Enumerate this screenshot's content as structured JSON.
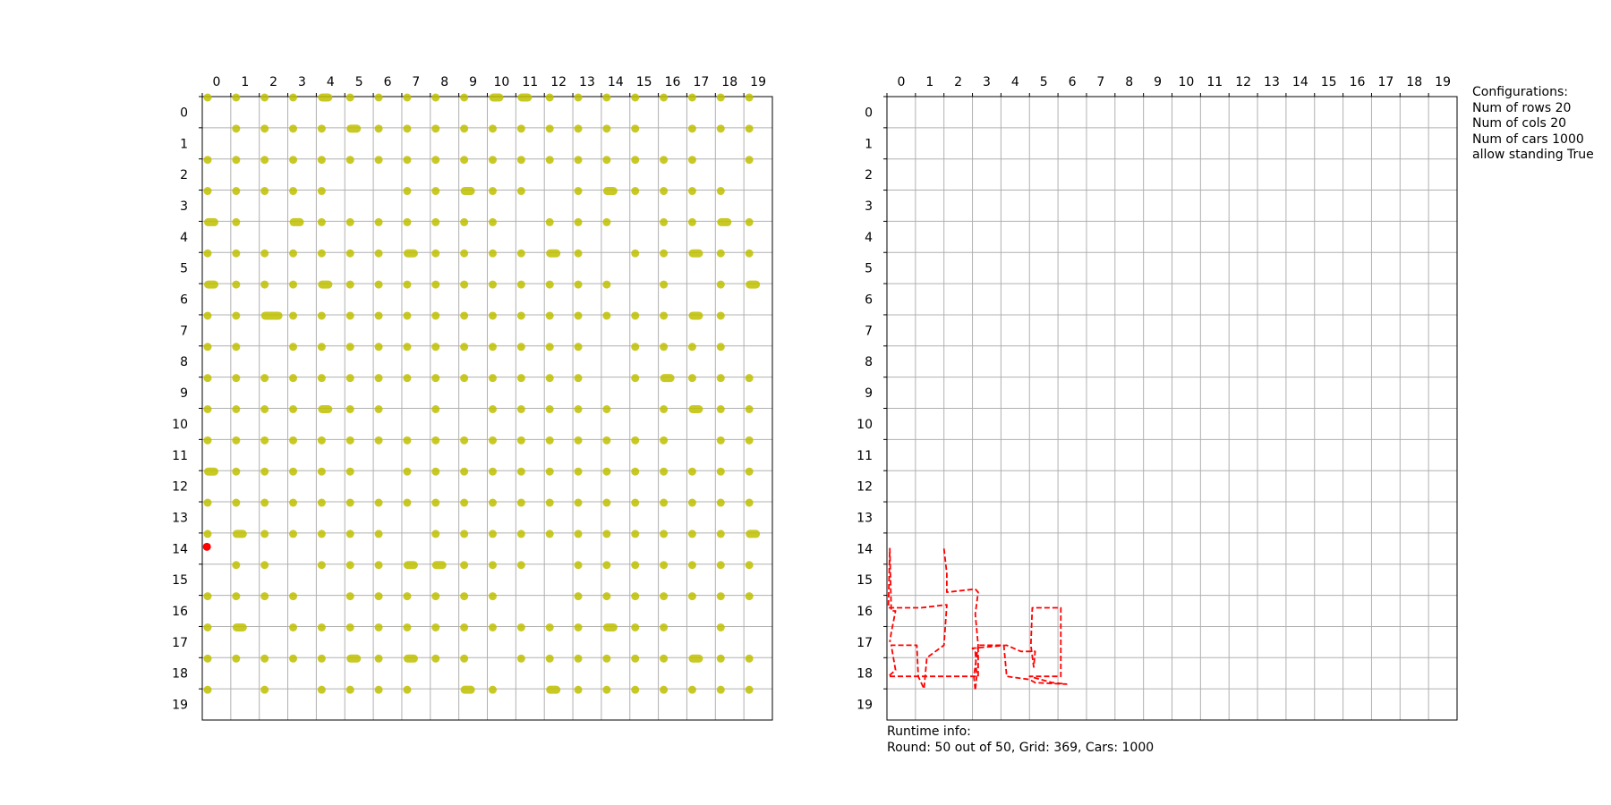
{
  "configurations": {
    "title": "Configurations:",
    "lines": [
      "Num of rows 20",
      "Num of cols 20",
      "Num of cars 1000",
      "allow standing True"
    ]
  },
  "runtime": {
    "title": "Runtime info:",
    "line": "Round: 50 out of 50, Grid: 369, Cars: 1000"
  },
  "colors": {
    "car": "#bfbf00",
    "highlight": "#ff0000",
    "path": "#ff0000",
    "grid": "#b0b0b0"
  },
  "chart_data": [
    {
      "type": "scatter",
      "title": "",
      "x_ticks": [
        0,
        1,
        2,
        3,
        4,
        5,
        6,
        7,
        8,
        9,
        10,
        11,
        12,
        13,
        14,
        15,
        16,
        17,
        18,
        19
      ],
      "y_ticks": [
        0,
        1,
        2,
        3,
        4,
        5,
        6,
        7,
        8,
        9,
        10,
        11,
        12,
        13,
        14,
        15,
        16,
        17,
        18,
        19
      ],
      "xlim": [
        0,
        20
      ],
      "ylim": [
        20,
        0
      ],
      "grid": true,
      "car_row_occupancy": [
        [
          1,
          1,
          1,
          1,
          2,
          1,
          1,
          1,
          1,
          1,
          2,
          2,
          1,
          1,
          1,
          1,
          1,
          1,
          1,
          1
        ],
        [
          0,
          1,
          1,
          1,
          1,
          2,
          1,
          1,
          1,
          1,
          1,
          1,
          1,
          1,
          1,
          1,
          0,
          1,
          1,
          1
        ],
        [
          1,
          1,
          1,
          1,
          1,
          1,
          1,
          1,
          1,
          1,
          1,
          1,
          1,
          1,
          1,
          1,
          1,
          1,
          0,
          1
        ],
        [
          1,
          1,
          1,
          1,
          1,
          0,
          0,
          1,
          1,
          2,
          1,
          1,
          0,
          1,
          2,
          1,
          1,
          1,
          1,
          0
        ],
        [
          2,
          1,
          0,
          2,
          1,
          1,
          1,
          1,
          1,
          1,
          1,
          0,
          1,
          1,
          1,
          0,
          1,
          1,
          2,
          1
        ],
        [
          1,
          1,
          1,
          1,
          1,
          1,
          1,
          2,
          1,
          1,
          1,
          1,
          2,
          1,
          0,
          1,
          1,
          2,
          1,
          1
        ],
        [
          2,
          1,
          1,
          1,
          2,
          1,
          1,
          1,
          1,
          1,
          1,
          1,
          1,
          1,
          1,
          0,
          1,
          0,
          1,
          2
        ],
        [
          1,
          1,
          3,
          1,
          1,
          1,
          1,
          1,
          1,
          1,
          1,
          1,
          1,
          1,
          1,
          1,
          1,
          2,
          1,
          0
        ],
        [
          1,
          1,
          0,
          1,
          1,
          1,
          1,
          1,
          1,
          1,
          1,
          1,
          1,
          1,
          0,
          1,
          1,
          1,
          1,
          0
        ],
        [
          1,
          1,
          1,
          1,
          1,
          1,
          1,
          1,
          1,
          1,
          1,
          1,
          1,
          1,
          0,
          1,
          2,
          1,
          1,
          1
        ],
        [
          1,
          1,
          1,
          1,
          2,
          1,
          1,
          0,
          1,
          0,
          1,
          1,
          1,
          1,
          1,
          0,
          1,
          2,
          1,
          1
        ],
        [
          1,
          1,
          1,
          1,
          1,
          1,
          1,
          1,
          1,
          1,
          1,
          1,
          1,
          1,
          1,
          1,
          1,
          0,
          1,
          1
        ],
        [
          2,
          1,
          1,
          1,
          1,
          1,
          0,
          1,
          1,
          1,
          1,
          1,
          1,
          1,
          1,
          1,
          1,
          1,
          1,
          1
        ],
        [
          1,
          1,
          1,
          1,
          1,
          1,
          1,
          1,
          1,
          1,
          1,
          1,
          1,
          1,
          1,
          1,
          1,
          1,
          1,
          1
        ],
        [
          1,
          2,
          1,
          1,
          1,
          1,
          1,
          0,
          1,
          1,
          1,
          1,
          1,
          1,
          1,
          1,
          1,
          1,
          1,
          2
        ],
        [
          0,
          1,
          1,
          0,
          1,
          1,
          1,
          2,
          2,
          1,
          1,
          1,
          0,
          1,
          1,
          1,
          1,
          1,
          1,
          1
        ],
        [
          1,
          1,
          1,
          1,
          0,
          1,
          1,
          1,
          1,
          1,
          1,
          0,
          0,
          1,
          1,
          1,
          1,
          1,
          1,
          1
        ],
        [
          1,
          2,
          0,
          1,
          1,
          1,
          1,
          1,
          1,
          1,
          1,
          1,
          1,
          1,
          2,
          1,
          1,
          0,
          1,
          0
        ],
        [
          1,
          1,
          1,
          1,
          1,
          2,
          1,
          2,
          1,
          1,
          0,
          1,
          1,
          1,
          1,
          1,
          1,
          2,
          1,
          1
        ],
        [
          1,
          0,
          1,
          0,
          1,
          1,
          1,
          1,
          0,
          2,
          1,
          0,
          2,
          1,
          1,
          1,
          1,
          1,
          1,
          1
        ]
      ],
      "highlighted_car": {
        "x": 0.1,
        "y": 14.5
      }
    },
    {
      "type": "line",
      "title": "",
      "x_ticks": [
        0,
        1,
        2,
        3,
        4,
        5,
        6,
        7,
        8,
        9,
        10,
        11,
        12,
        13,
        14,
        15,
        16,
        17,
        18,
        19
      ],
      "y_ticks": [
        0,
        1,
        2,
        3,
        4,
        5,
        6,
        7,
        8,
        9,
        10,
        11,
        12,
        13,
        14,
        15,
        16,
        17,
        18,
        19
      ],
      "xlim": [
        0,
        20
      ],
      "ylim": [
        20,
        0
      ],
      "grid": true,
      "line_style": "dashed",
      "path": [
        [
          2.0,
          14.5
        ],
        [
          2.1,
          15.3
        ],
        [
          2.1,
          15.9
        ],
        [
          3.1,
          15.8
        ],
        [
          3.2,
          15.9
        ],
        [
          3.1,
          16.6
        ],
        [
          3.2,
          17.6
        ],
        [
          3.05,
          18.6
        ],
        [
          3.1,
          19.05
        ],
        [
          3.15,
          18.6
        ],
        [
          3.1,
          17.8
        ],
        [
          3.0,
          17.7
        ],
        [
          4.2,
          17.6
        ],
        [
          4.7,
          17.8
        ],
        [
          5.2,
          17.8
        ],
        [
          5.15,
          18.3
        ],
        [
          5.05,
          17.6
        ],
        [
          5.1,
          16.4
        ],
        [
          6.1,
          16.4
        ],
        [
          6.1,
          18.6
        ],
        [
          5.6,
          18.6
        ],
        [
          5.0,
          18.6
        ],
        [
          5.8,
          18.8
        ],
        [
          6.3,
          18.85
        ],
        [
          5.2,
          18.8
        ],
        [
          5.0,
          18.7
        ],
        [
          4.2,
          18.6
        ],
        [
          4.1,
          17.6
        ],
        [
          3.2,
          17.6
        ],
        [
          3.2,
          18.6
        ],
        [
          1.3,
          18.6
        ],
        [
          0.05,
          18.6
        ],
        [
          0.3,
          18.4
        ],
        [
          0.15,
          17.6
        ],
        [
          1.05,
          17.6
        ],
        [
          1.1,
          18.6
        ],
        [
          1.3,
          19.0
        ],
        [
          1.4,
          18.0
        ],
        [
          2.0,
          17.6
        ],
        [
          2.1,
          16.3
        ],
        [
          1.2,
          16.4
        ],
        [
          0.3,
          16.4
        ],
        [
          0.05,
          16.4
        ],
        [
          0.1,
          14.5
        ],
        [
          0.15,
          16.5
        ],
        [
          0.3,
          16.5
        ],
        [
          0.15,
          17.2
        ],
        [
          0.1,
          17.5
        ]
      ]
    }
  ]
}
